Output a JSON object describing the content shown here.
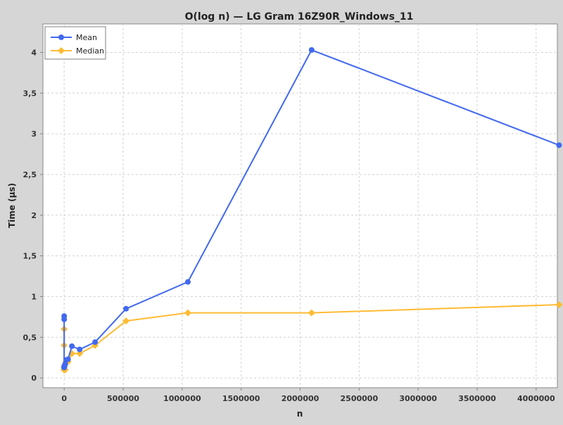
{
  "chart_data": {
    "type": "line",
    "title": "O(log n) — LG Gram 16Z90R_Windows_11",
    "xlabel": "n",
    "ylabel": "Time (µs)",
    "xlim": [
      -180000,
      4180000
    ],
    "ylim": [
      -0.12,
      4.35
    ],
    "x_ticks": [
      0,
      500000,
      1000000,
      1500000,
      2000000,
      2500000,
      3000000,
      3500000,
      4000000
    ],
    "x_tick_labels": [
      "0",
      "500000",
      "1000000",
      "1500000",
      "2000000",
      "2500000",
      "3000000",
      "3500000",
      "4000000"
    ],
    "y_ticks": [
      0,
      0.5,
      1,
      1.5,
      2,
      2.5,
      3,
      3.5,
      4
    ],
    "y_tick_labels": [
      "0",
      "0,5",
      "1",
      "1,5",
      "2",
      "2,5",
      "3",
      "3,5",
      "4"
    ],
    "grid": true,
    "legend_position": "top-left",
    "x": [
      1,
      2,
      4,
      8,
      16,
      32,
      64,
      128,
      256,
      512,
      1024,
      2048,
      4096,
      8192,
      16384,
      32768,
      65536,
      131072,
      262144,
      524288,
      1048576,
      2097152,
      4194304
    ],
    "series": [
      {
        "name": "Mean",
        "color": "#4169f0",
        "marker": "circle",
        "values": [
          0.76,
          0.72,
          0.14,
          0.13,
          0.13,
          0.13,
          0.13,
          0.13,
          0.13,
          0.13,
          0.14,
          0.15,
          0.15,
          0.17,
          0.22,
          0.23,
          0.39,
          0.35,
          0.44,
          0.85,
          1.18,
          4.03,
          2.86
        ]
      },
      {
        "name": "Median",
        "color": "#ffbb33",
        "marker": "diamond",
        "values": [
          0.6,
          0.4,
          0.1,
          0.1,
          0.1,
          0.1,
          0.1,
          0.1,
          0.1,
          0.1,
          0.1,
          0.1,
          0.1,
          0.1,
          0.2,
          0.2,
          0.3,
          0.3,
          0.4,
          0.7,
          0.8,
          0.8,
          0.9
        ]
      }
    ]
  }
}
